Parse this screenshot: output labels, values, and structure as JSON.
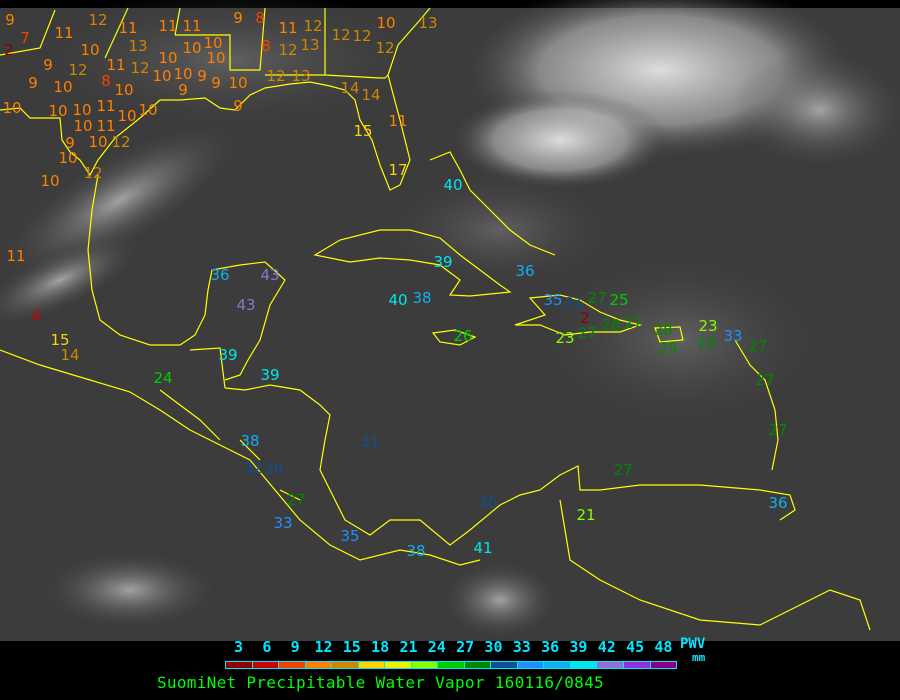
{
  "caption": "SuomiNet Precipitable Water Vapor 160116/0845",
  "legend": {
    "ticks": [
      "3",
      "6",
      "9",
      "12",
      "15",
      "18",
      "21",
      "24",
      "27",
      "30",
      "33",
      "36",
      "39",
      "42",
      "45",
      "48"
    ],
    "unit_label": "PWV",
    "unit": "mm",
    "colors": [
      "#8b0000",
      "#cc0000",
      "#ee4400",
      "#ff8000",
      "#cc8800",
      "#ffd200",
      "#eeee00",
      "#88ff00",
      "#00cc00",
      "#008800",
      "#104f90",
      "#2090ff",
      "#10b0f0",
      "#00e8e8",
      "#9070d0",
      "#9030e0",
      "#880088"
    ]
  },
  "colors": {
    "coastline": "#ffff00",
    "background": "#3c3c3c",
    "clouds": "#e8e8e8"
  },
  "stations": [
    "9",
    "2",
    "7",
    "11",
    "12",
    "10",
    "9",
    "12",
    "11",
    "12",
    "9",
    "10",
    "8",
    "10",
    "10",
    "10",
    "10",
    "11",
    "10",
    "10",
    "10",
    "11",
    "9",
    "10",
    "12",
    "10",
    "12",
    "10",
    "11",
    "13",
    "11",
    "11",
    "10",
    "10",
    "10",
    "10",
    "10",
    "10",
    "9",
    "9",
    "9",
    "10",
    "9",
    "9",
    "8",
    "11",
    "12",
    "8",
    "12",
    "13",
    "12",
    "12",
    "10",
    "13",
    "12",
    "12",
    "13",
    "14",
    "14",
    "15",
    "11",
    "17",
    "11",
    "4",
    "15",
    "14",
    "40",
    "36",
    "43",
    "43",
    "39",
    "36",
    "40",
    "38",
    "26",
    "39",
    "39",
    "24",
    "35",
    "31",
    "27",
    "25",
    "2",
    "23",
    "27",
    "28",
    "27",
    "28",
    "29",
    "23",
    "28",
    "33",
    "27",
    "27",
    "27",
    "27",
    "36",
    "21",
    "38",
    "32",
    "30",
    "27",
    "33",
    "35",
    "38",
    "41",
    "31",
    "30"
  ]
}
